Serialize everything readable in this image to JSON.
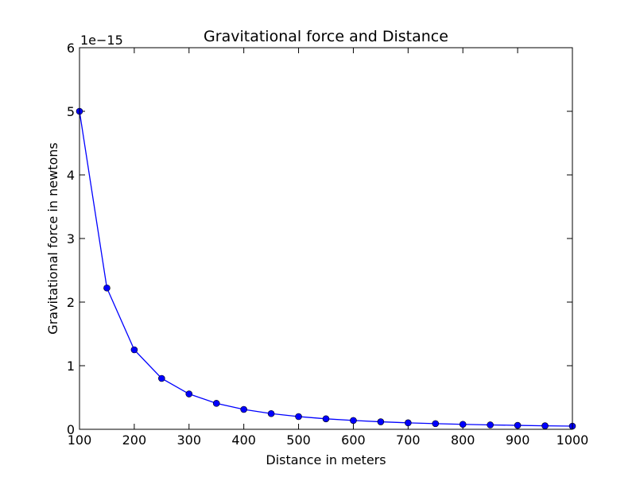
{
  "chart_data": {
    "type": "line",
    "title": "Gravitational force and Distance",
    "xlabel": "Distance in meters",
    "ylabel": "Gravitational force in newtons",
    "y_offset_label": "1e−15",
    "xlim": [
      100,
      1000
    ],
    "ylim": [
      0,
      6
    ],
    "x_ticks": [
      100,
      200,
      300,
      400,
      500,
      600,
      700,
      800,
      900,
      1000
    ],
    "y_ticks": [
      0,
      1,
      2,
      3,
      4,
      5,
      6
    ],
    "grid": false,
    "legend": "none",
    "series": [
      {
        "color": "#0000ff",
        "marker": "circle",
        "x": [
          100,
          150,
          200,
          250,
          300,
          350,
          400,
          450,
          500,
          550,
          600,
          650,
          700,
          750,
          800,
          850,
          900,
          950,
          1000
        ],
        "y": [
          5.0,
          2.222,
          1.25,
          0.8,
          0.556,
          0.408,
          0.3125,
          0.247,
          0.2,
          0.165,
          0.139,
          0.118,
          0.102,
          0.089,
          0.078,
          0.069,
          0.062,
          0.055,
          0.05
        ]
      }
    ]
  }
}
